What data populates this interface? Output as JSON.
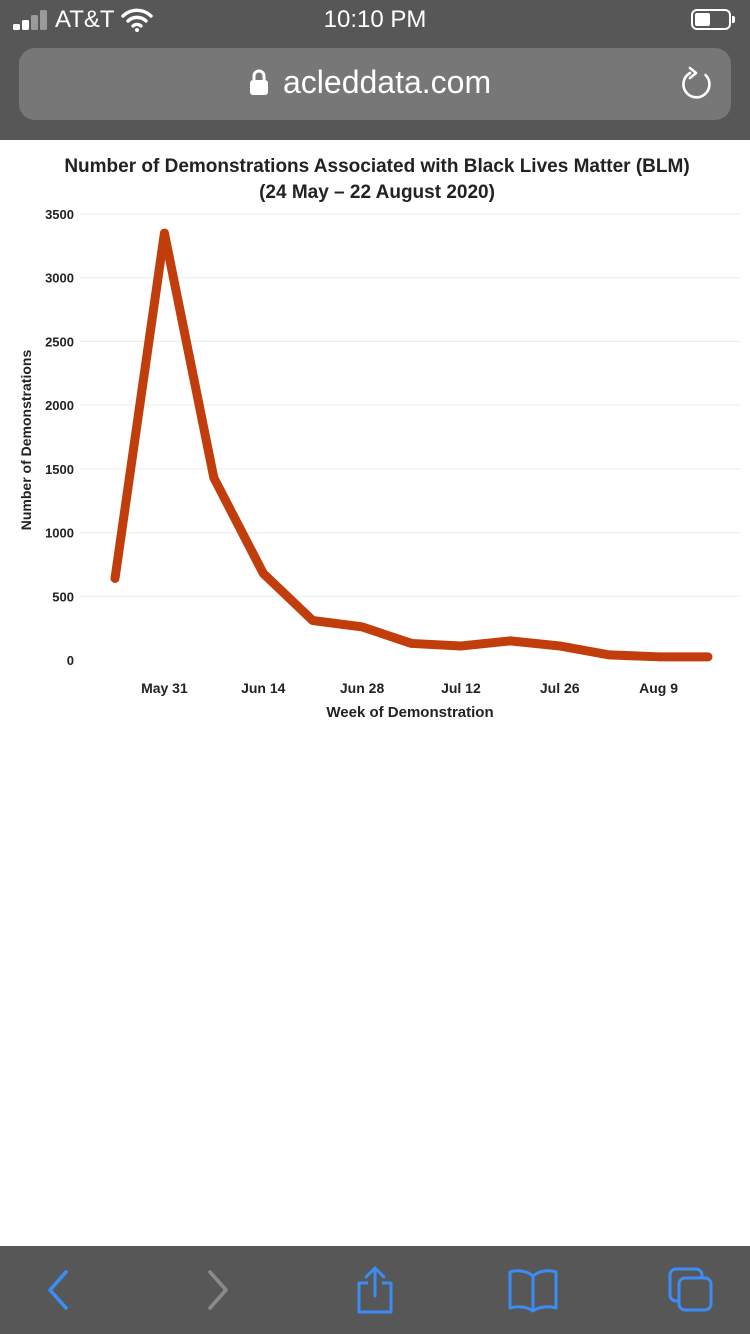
{
  "status_bar": {
    "carrier": "AT&T",
    "time": "10:10 PM"
  },
  "browser": {
    "url": "acleddata.com",
    "toolbar": {
      "back": "back-icon",
      "forward": "forward-icon",
      "share": "share-icon",
      "bookmarks": "book-icon",
      "tabs": "tabs-icon"
    }
  },
  "colors": {
    "chrome": "#575757",
    "url_field": "#777777",
    "line": "#c13e0c",
    "toolbar_icon": "#3c8cf5"
  },
  "chart_data": {
    "type": "line",
    "title_line1": "Number of Demonstrations Associated with Black Lives Matter (BLM)",
    "title_line2": "(24 May – 22 August 2020)",
    "xlabel": "Week of Demonstration",
    "ylabel": "Number of Demonstrations",
    "ylim": [
      0,
      3500
    ],
    "yticks": [
      0,
      500,
      1000,
      1500,
      2000,
      2500,
      3000,
      3500
    ],
    "xticks": [
      {
        "label": "May 31",
        "week": 1
      },
      {
        "label": "Jun 14",
        "week": 3
      },
      {
        "label": "Jun 28",
        "week": 5
      },
      {
        "label": "Jul 12",
        "week": 7
      },
      {
        "label": "Jul 26",
        "week": 9
      },
      {
        "label": "Aug 9",
        "week": 11
      }
    ],
    "grid": true,
    "series": [
      {
        "name": "BLM demonstrations",
        "x": [
          0,
          1,
          2,
          3,
          4,
          5,
          6,
          7,
          8,
          9,
          10,
          11,
          12
        ],
        "values": [
          640,
          3350,
          1430,
          680,
          310,
          260,
          130,
          110,
          150,
          110,
          40,
          25,
          25
        ]
      }
    ]
  }
}
